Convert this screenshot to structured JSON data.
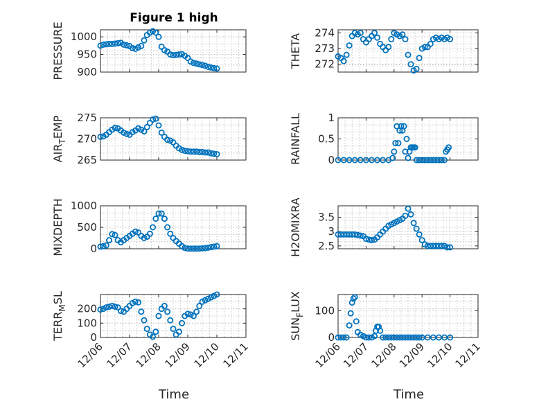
{
  "colors": {
    "marker": "#0072bd",
    "axis": "#262626",
    "grid": "#b8b8b8"
  },
  "chart_data": [
    {
      "type": "scatter",
      "name": "pressure",
      "title": "Figure 1 high",
      "ylabel": "PRESSURE",
      "xlabel": "",
      "ylim": [
        900,
        1020
      ],
      "yticks": [
        900,
        950,
        1000
      ],
      "ytick_labels": [
        "900",
        "950",
        "1000"
      ],
      "xlim": [
        0,
        5
      ],
      "xticks": [
        0,
        1,
        2,
        3,
        4,
        5
      ],
      "x": [
        0.0,
        0.1,
        0.2,
        0.3,
        0.4,
        0.5,
        0.6,
        0.7,
        0.8,
        0.9,
        1.0,
        1.1,
        1.2,
        1.3,
        1.4,
        1.5,
        1.6,
        1.7,
        1.8,
        1.9,
        2.0,
        2.1,
        2.2,
        2.3,
        2.4,
        2.5,
        2.6,
        2.7,
        2.8,
        2.9,
        3.0,
        3.1,
        3.2,
        3.3,
        3.4,
        3.5,
        3.6,
        3.7,
        3.8,
        3.9,
        4.0
      ],
      "y": [
        975,
        978,
        979,
        980,
        980,
        981,
        982,
        983,
        978,
        976,
        974,
        968,
        966,
        970,
        974,
        990,
        1005,
        1012,
        1016,
        1012,
        1000,
        972,
        962,
        958,
        950,
        948,
        949,
        950,
        951,
        946,
        940,
        930,
        926,
        924,
        922,
        920,
        918,
        915,
        913,
        911,
        910
      ]
    },
    {
      "type": "scatter",
      "name": "theta",
      "title": "",
      "ylabel": "THETA",
      "xlabel": "",
      "ylim": [
        271.5,
        274.2
      ],
      "yticks": [
        272,
        273,
        274
      ],
      "ytick_labels": [
        "272",
        "273",
        "274"
      ],
      "xlim": [
        0,
        5
      ],
      "xticks": [
        0,
        1,
        2,
        3,
        4,
        5
      ],
      "x": [
        0.0,
        0.1,
        0.2,
        0.3,
        0.4,
        0.5,
        0.6,
        0.7,
        0.8,
        0.9,
        1.0,
        1.1,
        1.2,
        1.3,
        1.4,
        1.5,
        1.6,
        1.7,
        1.8,
        1.9,
        2.0,
        2.1,
        2.2,
        2.3,
        2.4,
        2.5,
        2.6,
        2.7,
        2.8,
        2.9,
        3.0,
        3.1,
        3.2,
        3.3,
        3.4,
        3.5,
        3.6,
        3.7,
        3.8,
        3.9,
        4.0
      ],
      "y": [
        272.5,
        272.4,
        272.2,
        272.6,
        273.2,
        273.8,
        274.0,
        273.9,
        274.0,
        273.6,
        273.4,
        273.6,
        273.8,
        274.0,
        273.7,
        273.3,
        273.1,
        272.9,
        273.1,
        273.6,
        274.0,
        273.9,
        273.8,
        273.9,
        273.6,
        272.6,
        272.0,
        271.6,
        271.7,
        272.4,
        273.0,
        273.1,
        273.1,
        273.3,
        273.6,
        273.7,
        273.6,
        273.7,
        273.6,
        273.7,
        273.6
      ]
    },
    {
      "type": "scatter",
      "name": "air_temp",
      "title": "",
      "ylabel": "AIR_TEMP",
      "xlabel": "",
      "ylim": [
        265,
        275
      ],
      "yticks": [
        265,
        270,
        275
      ],
      "ytick_labels": [
        "265",
        "270",
        "275"
      ],
      "xlim": [
        0,
        5
      ],
      "xticks": [
        0,
        1,
        2,
        3,
        4,
        5
      ],
      "x": [
        0.0,
        0.1,
        0.2,
        0.3,
        0.4,
        0.5,
        0.6,
        0.7,
        0.8,
        0.9,
        1.0,
        1.1,
        1.2,
        1.3,
        1.4,
        1.5,
        1.6,
        1.7,
        1.8,
        1.9,
        2.0,
        2.1,
        2.2,
        2.3,
        2.4,
        2.5,
        2.6,
        2.7,
        2.8,
        2.9,
        3.0,
        3.1,
        3.2,
        3.3,
        3.4,
        3.5,
        3.6,
        3.7,
        3.8,
        3.9,
        4.0
      ],
      "y": [
        270.5,
        270.6,
        271.0,
        271.6,
        272.2,
        272.6,
        272.5,
        272.0,
        271.5,
        271.2,
        271.0,
        271.6,
        272.0,
        272.5,
        272.2,
        271.8,
        272.8,
        273.8,
        274.6,
        274.8,
        273.2,
        271.5,
        270.5,
        269.8,
        269.6,
        269.2,
        268.4,
        267.8,
        267.4,
        267.2,
        267.1,
        267.0,
        267.0,
        267.0,
        266.9,
        266.9,
        266.8,
        266.8,
        266.6,
        266.5,
        266.4
      ]
    },
    {
      "type": "scatter",
      "name": "rainfall",
      "title": "",
      "ylabel": "RAINFALL",
      "xlabel": "",
      "ylim": [
        0,
        1
      ],
      "yticks": [
        0,
        0.5,
        1
      ],
      "ytick_labels": [
        "0",
        "0.5",
        "1"
      ],
      "xlim": [
        0,
        5
      ],
      "xticks": [
        0,
        1,
        2,
        3,
        4,
        5
      ],
      "x": [
        0.0,
        0.2,
        0.4,
        0.6,
        0.8,
        1.0,
        1.2,
        1.4,
        1.6,
        1.8,
        1.95,
        2.0,
        2.05,
        2.1,
        2.15,
        2.2,
        2.25,
        2.3,
        2.35,
        2.4,
        2.45,
        2.5,
        2.55,
        2.6,
        2.65,
        2.7,
        2.75,
        2.8,
        2.9,
        3.0,
        3.1,
        3.2,
        3.3,
        3.4,
        3.5,
        3.6,
        3.7,
        3.8,
        3.85,
        3.9,
        3.95
      ],
      "y": [
        0,
        0,
        0,
        0,
        0,
        0,
        0,
        0,
        0,
        0,
        0.05,
        0.2,
        0.4,
        0.8,
        0.4,
        0.7,
        0.8,
        0.7,
        0.8,
        0.2,
        0.5,
        0.05,
        0.2,
        0.3,
        0.3,
        0.3,
        0.3,
        0,
        0,
        0,
        0,
        0,
        0,
        0,
        0,
        0,
        0,
        0,
        0.2,
        0.25,
        0.3
      ]
    },
    {
      "type": "scatter",
      "name": "mixdepth",
      "title": "",
      "ylabel": "MIXDEPTH",
      "xlabel": "",
      "ylim": [
        0,
        1000
      ],
      "yticks": [
        0,
        500,
        1000
      ],
      "ytick_labels": [
        "0",
        "500",
        "1000"
      ],
      "xlim": [
        0,
        5
      ],
      "xticks": [
        0,
        1,
        2,
        3,
        4,
        5
      ],
      "x": [
        0.0,
        0.1,
        0.2,
        0.3,
        0.4,
        0.5,
        0.6,
        0.7,
        0.8,
        0.9,
        1.0,
        1.1,
        1.2,
        1.3,
        1.4,
        1.5,
        1.6,
        1.7,
        1.8,
        1.9,
        2.0,
        2.1,
        2.2,
        2.3,
        2.4,
        2.5,
        2.6,
        2.7,
        2.8,
        2.9,
        3.0,
        3.1,
        3.2,
        3.3,
        3.4,
        3.5,
        3.6,
        3.7,
        3.8,
        3.9,
        4.0
      ],
      "y": [
        50,
        60,
        80,
        200,
        340,
        320,
        200,
        150,
        200,
        250,
        300,
        350,
        400,
        380,
        300,
        250,
        280,
        350,
        500,
        700,
        820,
        820,
        700,
        500,
        350,
        250,
        180,
        120,
        60,
        20,
        5,
        5,
        5,
        5,
        5,
        10,
        15,
        25,
        40,
        50,
        60
      ]
    },
    {
      "type": "scatter",
      "name": "h2omixra",
      "title": "",
      "ylabel": "H2OMIXRA",
      "xlabel": "",
      "ylim": [
        2.4,
        3.9
      ],
      "yticks": [
        2.5,
        3,
        3.5
      ],
      "ytick_labels": [
        "2.5",
        "3",
        "3.5"
      ],
      "xlim": [
        0,
        5
      ],
      "xticks": [
        0,
        1,
        2,
        3,
        4,
        5
      ],
      "x": [
        0.0,
        0.1,
        0.2,
        0.3,
        0.4,
        0.5,
        0.6,
        0.7,
        0.8,
        0.9,
        1.0,
        1.1,
        1.2,
        1.3,
        1.4,
        1.5,
        1.6,
        1.7,
        1.8,
        1.9,
        2.0,
        2.1,
        2.2,
        2.3,
        2.4,
        2.5,
        2.6,
        2.7,
        2.8,
        2.9,
        3.0,
        3.1,
        3.2,
        3.3,
        3.4,
        3.5,
        3.6,
        3.7,
        3.8,
        3.9,
        4.0
      ],
      "y": [
        2.9,
        2.9,
        2.9,
        2.9,
        2.9,
        2.9,
        2.9,
        2.88,
        2.86,
        2.84,
        2.75,
        2.72,
        2.7,
        2.72,
        2.8,
        2.9,
        3.0,
        3.1,
        3.2,
        3.25,
        3.3,
        3.35,
        3.4,
        3.45,
        3.55,
        3.8,
        3.6,
        3.3,
        3.1,
        2.9,
        2.7,
        2.55,
        2.5,
        2.5,
        2.5,
        2.5,
        2.5,
        2.5,
        2.5,
        2.45,
        2.45
      ]
    },
    {
      "type": "scatter",
      "name": "terr_msl",
      "title": "",
      "ylabel": "TERR_MSL",
      "xlabel": "Time",
      "ylim": [
        0,
        300
      ],
      "yticks": [
        0,
        100,
        200
      ],
      "ytick_labels": [
        "0",
        "100",
        "200"
      ],
      "xlim": [
        0,
        5
      ],
      "xticks": [
        0,
        1,
        2,
        3,
        4,
        5
      ],
      "xtick_labels": [
        "12/06",
        "12/07",
        "12/08",
        "12/09",
        "12/10",
        "12/11"
      ],
      "x": [
        0.0,
        0.1,
        0.2,
        0.3,
        0.4,
        0.5,
        0.6,
        0.7,
        0.8,
        0.9,
        1.0,
        1.1,
        1.2,
        1.3,
        1.4,
        1.5,
        1.6,
        1.7,
        1.8,
        1.9,
        2.0,
        2.1,
        2.2,
        2.3,
        2.4,
        2.5,
        2.6,
        2.7,
        2.8,
        2.9,
        3.0,
        3.1,
        3.2,
        3.3,
        3.4,
        3.5,
        3.6,
        3.7,
        3.8,
        3.9,
        4.0
      ],
      "y": [
        195,
        200,
        210,
        215,
        220,
        215,
        210,
        185,
        180,
        200,
        220,
        240,
        250,
        245,
        180,
        120,
        60,
        20,
        5,
        40,
        150,
        200,
        220,
        180,
        120,
        60,
        20,
        40,
        100,
        150,
        165,
        160,
        150,
        180,
        220,
        250,
        260,
        270,
        280,
        290,
        300
      ]
    },
    {
      "type": "scatter",
      "name": "sun_flux",
      "title": "",
      "ylabel": "SUN_FLUX",
      "xlabel": "Time",
      "ylim": [
        0,
        160
      ],
      "yticks": [
        0,
        100
      ],
      "ytick_labels": [
        "0",
        "100"
      ],
      "xlim": [
        0,
        5
      ],
      "xticks": [
        0,
        1,
        2,
        3,
        4,
        5
      ],
      "xtick_labels": [
        "12/06",
        "12/07",
        "12/08",
        "12/09",
        "12/10",
        "12/11"
      ],
      "x": [
        0.0,
        0.1,
        0.2,
        0.3,
        0.4,
        0.45,
        0.5,
        0.55,
        0.6,
        0.65,
        0.7,
        0.8,
        0.9,
        1.0,
        1.1,
        1.2,
        1.3,
        1.35,
        1.4,
        1.45,
        1.5,
        1.6,
        1.7,
        1.8,
        1.9,
        2.0,
        2.1,
        2.2,
        2.3,
        2.4,
        2.5,
        2.6,
        2.7,
        2.8,
        2.9,
        3.0,
        3.2,
        3.4,
        3.6,
        3.8,
        4.0
      ],
      "y": [
        0,
        0,
        0,
        0,
        45,
        90,
        130,
        145,
        150,
        60,
        20,
        10,
        5,
        0,
        0,
        0,
        5,
        25,
        40,
        40,
        25,
        0,
        0,
        0,
        0,
        0,
        0,
        0,
        0,
        0,
        0,
        0,
        0,
        0,
        0,
        0,
        0,
        0,
        0,
        0,
        0
      ]
    }
  ]
}
